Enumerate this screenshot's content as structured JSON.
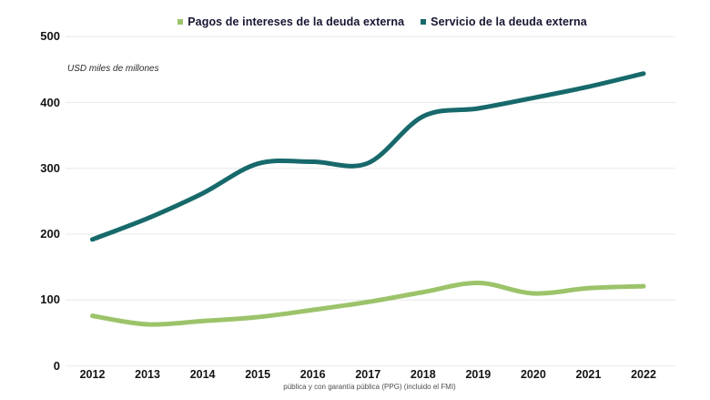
{
  "legend": {
    "items": [
      {
        "label": "Pagos de intereses de la deuda externa",
        "color": "#9cc36a"
      },
      {
        "label": "Servicio de la deuda externa",
        "color": "#17696b"
      }
    ]
  },
  "axis_note": "USD miles de millones",
  "footnote": "pública y con garantía pública (PPG) (incluido el FMI)",
  "colors": {
    "grid": "#ededed",
    "background": "#ffffff",
    "interest_line": "#9cc36a",
    "service_line": "#17696b"
  },
  "chart_data": {
    "type": "line",
    "x": [
      2012,
      2013,
      2014,
      2015,
      2016,
      2017,
      2018,
      2019,
      2020,
      2021,
      2022
    ],
    "series": [
      {
        "name": "Pagos de intereses de la deuda externa",
        "color": "#9cc36a",
        "values": [
          76,
          63,
          68,
          74,
          85,
          97,
          112,
          126,
          110,
          118,
          121
        ]
      },
      {
        "name": "Servicio de la deuda externa",
        "color": "#17696b",
        "values": [
          192,
          224,
          262,
          307,
          310,
          308,
          379,
          391,
          407,
          424,
          444
        ]
      }
    ],
    "title": "",
    "xlabel": "",
    "ylabel": "USD miles de millones",
    "ylim": [
      0,
      500
    ],
    "yticks": [
      0,
      100,
      200,
      300,
      400,
      500
    ],
    "grid": true,
    "legend_position": "top"
  }
}
